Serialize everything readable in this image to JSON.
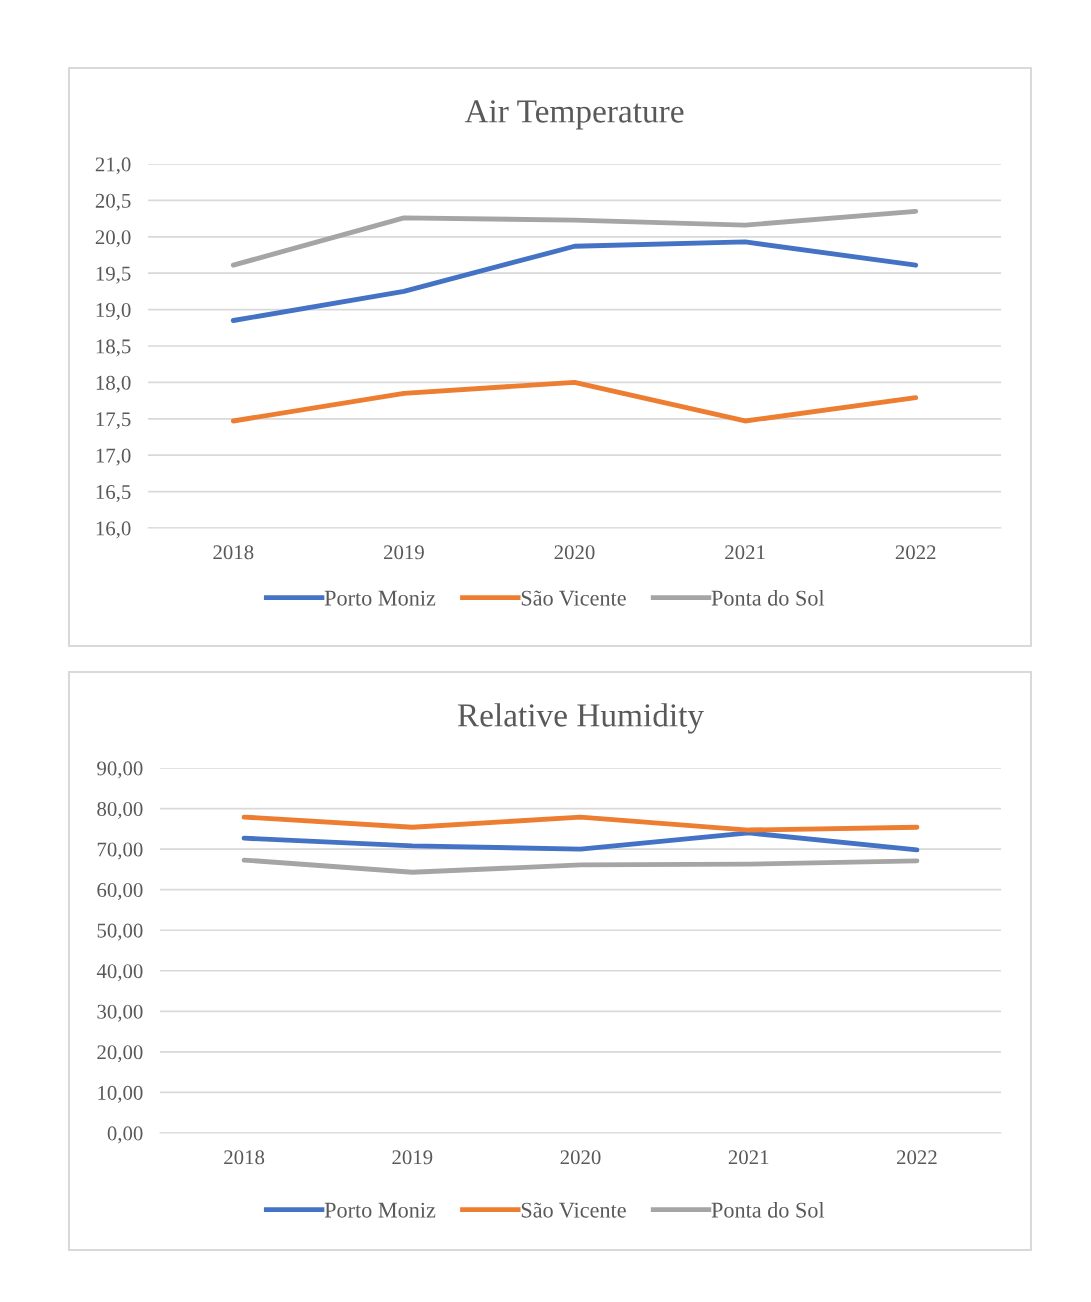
{
  "chart_data": [
    {
      "type": "line",
      "title": "Air Temperature",
      "categories": [
        "2018",
        "2019",
        "2020",
        "2021",
        "2022"
      ],
      "series": [
        {
          "name": "Porto Moniz",
          "color": "#4472c4",
          "values": [
            18.85,
            19.25,
            19.87,
            19.93,
            19.61
          ]
        },
        {
          "name": "São Vicente",
          "color": "#ed7d31",
          "values": [
            17.47,
            17.85,
            18.0,
            17.47,
            17.79
          ]
        },
        {
          "name": "Ponta do Sol",
          "color": "#a5a5a5",
          "values": [
            19.61,
            20.26,
            20.23,
            20.16,
            20.35
          ]
        }
      ],
      "ylim": [
        16.0,
        21.0
      ],
      "yticks": [
        {
          "value": 16.0,
          "label": "16,0"
        },
        {
          "value": 16.5,
          "label": "16,5"
        },
        {
          "value": 17.0,
          "label": "17,0"
        },
        {
          "value": 17.5,
          "label": "17,5"
        },
        {
          "value": 18.0,
          "label": "18,0"
        },
        {
          "value": 18.5,
          "label": "18,5"
        },
        {
          "value": 19.0,
          "label": "19,0"
        },
        {
          "value": 19.5,
          "label": "19,5"
        },
        {
          "value": 20.0,
          "label": "20,0"
        },
        {
          "value": 20.5,
          "label": "20,5"
        },
        {
          "value": 21.0,
          "label": "21,0"
        }
      ],
      "grid": "y",
      "legend": "bottom",
      "marker": "none",
      "line_style": "solid"
    },
    {
      "type": "line",
      "title": "Relative Humidity",
      "categories": [
        "2018",
        "2019",
        "2020",
        "2021",
        "2022"
      ],
      "series": [
        {
          "name": "Porto Moniz",
          "color": "#4472c4",
          "values": [
            72.7,
            70.8,
            70.0,
            74.0,
            69.8
          ]
        },
        {
          "name": "São Vicente",
          "color": "#ed7d31",
          "values": [
            77.9,
            75.4,
            77.9,
            74.7,
            75.4
          ]
        },
        {
          "name": "Ponta do Sol",
          "color": "#a5a5a5",
          "values": [
            67.3,
            64.3,
            66.1,
            66.3,
            67.1
          ]
        }
      ],
      "ylim": [
        0,
        90
      ],
      "yticks": [
        {
          "value": 0,
          "label": "0,00"
        },
        {
          "value": 10,
          "label": "10,00"
        },
        {
          "value": 20,
          "label": "20,00"
        },
        {
          "value": 30,
          "label": "30,00"
        },
        {
          "value": 40,
          "label": "40,00"
        },
        {
          "value": 50,
          "label": "50,00"
        },
        {
          "value": 60,
          "label": "60,00"
        },
        {
          "value": 70,
          "label": "70,00"
        },
        {
          "value": 80,
          "label": "80,00"
        },
        {
          "value": 90,
          "label": "90,00"
        }
      ],
      "grid": "y",
      "legend": "bottom",
      "marker": "none",
      "line_style": "solid"
    }
  ]
}
